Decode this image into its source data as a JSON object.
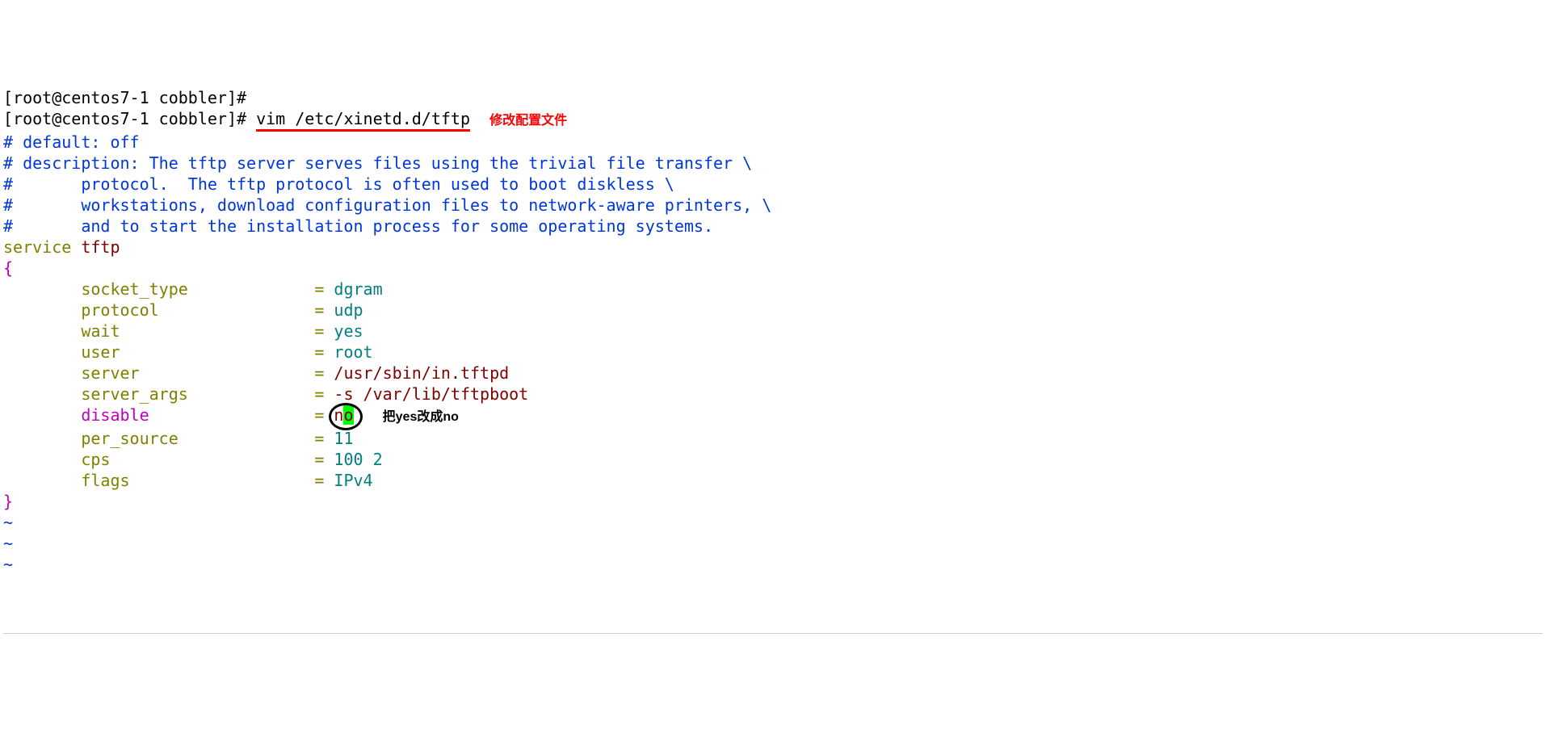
{
  "colors": {
    "black": "#000000",
    "blue": "#0037da",
    "olive": "#808000",
    "teal": "#008080",
    "maroon": "#800000",
    "magenta": "#c000c0",
    "red": "#ff0000",
    "cursor_bg": "#00ff00",
    "hr": "#cccccc"
  },
  "prompt": {
    "open_bracket": "[",
    "user_host": "root@centos7-1 cobbler",
    "close_bracket": "]#"
  },
  "command": {
    "text": "vim /etc/xinetd.d/tftp",
    "underline": true
  },
  "annotation_top": "修改配置文件",
  "file": {
    "comment_lines": [
      "# default: off",
      "# description: The tftp server serves files using the trivial file transfer \\",
      "#       protocol.  The tftp protocol is often used to boot diskless \\",
      "#       workstations, download configuration files to network-aware printers, \\",
      "#       and to start the installation process for some operating systems."
    ],
    "service_keyword": "service",
    "service_name": "tftp",
    "brace_open": "{",
    "brace_close": "}",
    "params": [
      {
        "key": "socket_type",
        "pad": "             ",
        "eq": "=",
        "value": "dgram",
        "value_color": "teal",
        "key_color": "olive"
      },
      {
        "key": "protocol",
        "pad": "                ",
        "eq": "=",
        "value": "udp",
        "value_color": "teal",
        "key_color": "olive"
      },
      {
        "key": "wait",
        "pad": "                    ",
        "eq": "=",
        "value": "yes",
        "value_color": "teal",
        "key_color": "olive"
      },
      {
        "key": "user",
        "pad": "                    ",
        "eq": "=",
        "value": "root",
        "value_color": "teal",
        "key_color": "olive"
      },
      {
        "key": "server",
        "pad": "                  ",
        "eq": "=",
        "value": "/usr/sbin/in.tftpd",
        "value_color": "maroon",
        "key_color": "olive"
      },
      {
        "key": "server_args",
        "pad": "             ",
        "eq": "=",
        "value": "-s /var/lib/tftpboot",
        "value_color": "maroon",
        "key_color": "olive"
      }
    ],
    "disable": {
      "key": "disable",
      "pad": "                 ",
      "eq": "=",
      "value_first_char": "n",
      "value_cursor_char": "o",
      "annotation": "把yes改成no"
    },
    "params_after": [
      {
        "key": "per_source",
        "pad": "              ",
        "eq": "=",
        "value": "11",
        "value_color": "teal",
        "key_color": "olive"
      },
      {
        "key": "cps",
        "pad": "                     ",
        "eq": "=",
        "value": "100 2",
        "value_color": "teal",
        "key_color": "olive"
      },
      {
        "key": "flags",
        "pad": "                   ",
        "eq": "=",
        "value": "IPv4",
        "value_color": "teal",
        "key_color": "olive"
      }
    ],
    "tilde": "~",
    "tilde_count": 3
  }
}
